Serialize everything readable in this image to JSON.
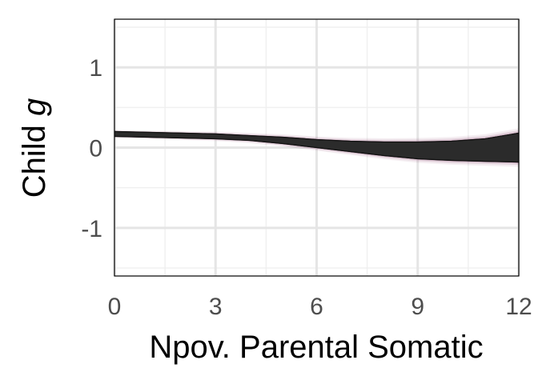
{
  "chart_data": {
    "type": "area",
    "xlabel": "Npov. Parental Somatic",
    "ylabel": {
      "prefix": "Child ",
      "italic": "g"
    },
    "xlim": [
      0,
      12
    ],
    "ylim": [
      -1.6,
      1.6
    ],
    "x_ticks": [
      0,
      3,
      6,
      9,
      12
    ],
    "x_tick_labels": [
      "0",
      "3",
      "6",
      "9",
      "12"
    ],
    "y_ticks": [
      -1,
      0,
      1
    ],
    "y_tick_labels": [
      "-1",
      "0",
      "1"
    ],
    "grid": true,
    "legend": "none",
    "band": {
      "x": [
        0,
        1,
        2,
        3,
        4,
        5,
        6,
        7,
        8,
        9,
        10,
        11,
        12
      ],
      "upper": [
        0.2,
        0.19,
        0.18,
        0.17,
        0.15,
        0.13,
        0.1,
        0.08,
        0.07,
        0.07,
        0.08,
        0.11,
        0.18
      ],
      "lower": [
        0.14,
        0.13,
        0.12,
        0.11,
        0.09,
        0.05,
        0.0,
        -0.05,
        -0.1,
        -0.14,
        -0.16,
        -0.17,
        -0.18
      ]
    },
    "colors": {
      "band_fill": "#2b2b2b",
      "band_halo": "#7a2a5c",
      "grid_major": "#e5e5e5",
      "grid_minor": "#f0f0f0",
      "panel_border": "#000000"
    }
  }
}
